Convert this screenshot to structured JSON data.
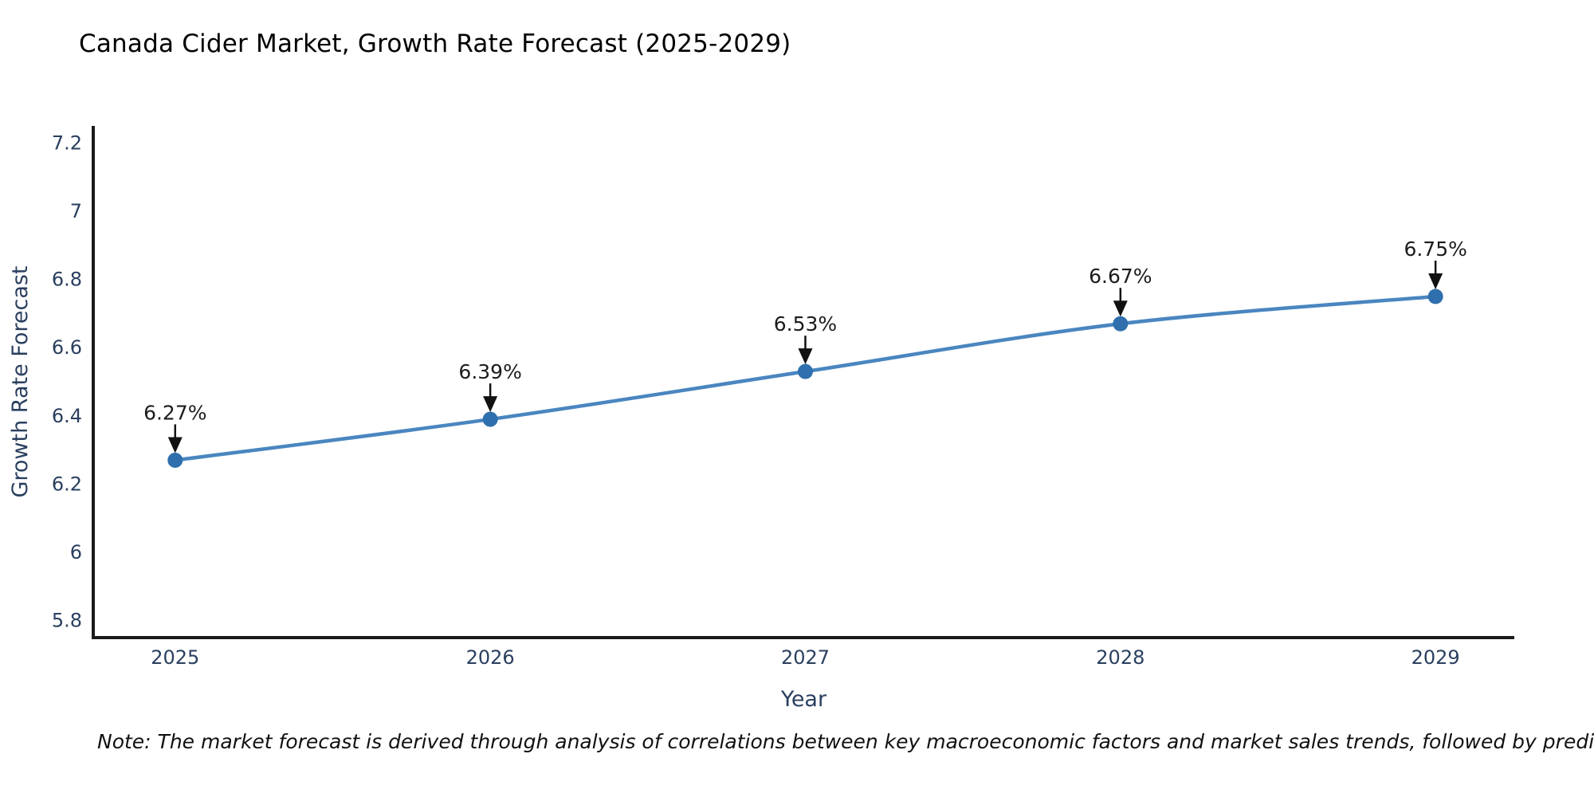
{
  "chart_data": {
    "type": "line",
    "title": "Canada Cider Market, Growth Rate Forecast (2025-2029)",
    "x": [
      2025,
      2026,
      2027,
      2028,
      2029
    ],
    "series": [
      {
        "name": "Growth Rate Forecast",
        "values": [
          6.27,
          6.39,
          6.53,
          6.67,
          6.75
        ]
      }
    ],
    "point_labels": [
      "6.27%",
      "6.39%",
      "6.53%",
      "6.67%",
      "6.75%"
    ],
    "xlabel": "Year",
    "ylabel": "Growth Rate Forecast",
    "xlim": [
      2024.74,
      2029.25
    ],
    "ylim": [
      5.75,
      7.25
    ],
    "xticks": [
      2025,
      2026,
      2027,
      2028,
      2029
    ],
    "xtick_labels": [
      "2025",
      "2026",
      "2027",
      "2028",
      "2029"
    ],
    "yticks": [
      5.8,
      6,
      6.2,
      6.4,
      6.6,
      6.8,
      7,
      7.2
    ],
    "ytick_labels": [
      "5.8",
      "6",
      "6.2",
      "6.4",
      "6.6",
      "6.8",
      "7",
      "7.2"
    ],
    "grid": false,
    "legend": "none",
    "line_shape": "spline",
    "colors": {
      "line": "#4a86c0",
      "marker": "#2f6fad",
      "axis": "#1a1a1a",
      "tick_text": "#2a3f5f",
      "title_text": "#2a3f5f",
      "annotation_text": "#1c1c1c",
      "arrow": "#111111"
    }
  },
  "note": {
    "text": "Note: The market forecast is derived through analysis of correlations between key macroeconomic factors and market sales trends, followed by predictive modeling to project future sales"
  }
}
